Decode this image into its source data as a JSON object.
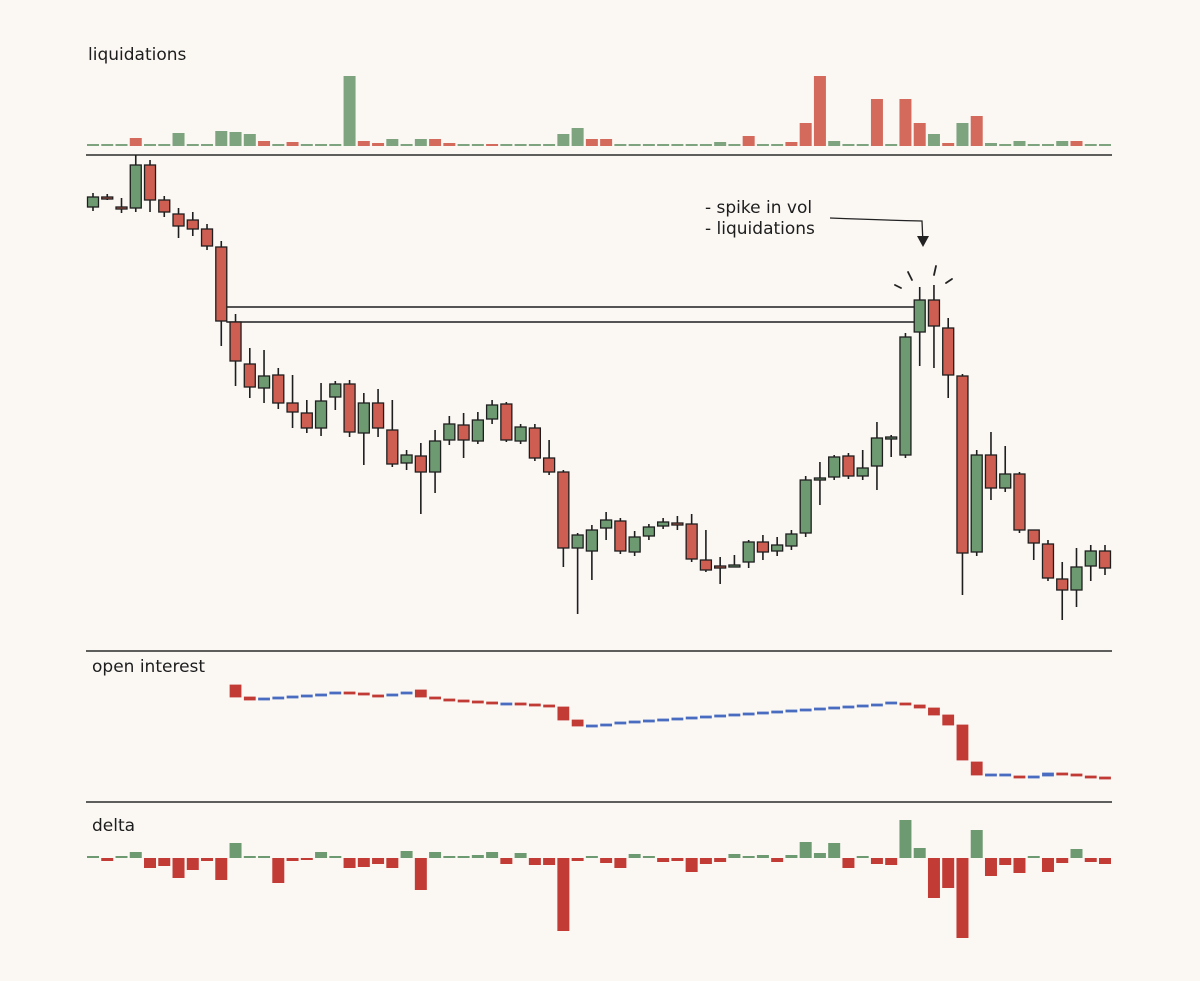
{
  "chart_data": [
    {
      "type": "bar",
      "title": "liquidations",
      "ylim": [
        0,
        72
      ],
      "values": [
        2,
        2,
        2,
        8,
        2,
        2,
        13,
        2,
        2,
        15,
        14,
        12,
        5,
        2,
        4,
        2,
        2,
        2,
        70,
        5,
        3,
        7,
        2,
        7,
        7,
        3,
        2,
        2,
        2,
        2,
        2,
        2,
        2,
        12,
        18,
        7,
        7,
        2,
        2,
        2,
        2,
        2,
        2,
        2,
        4,
        2,
        10,
        2,
        2,
        4,
        23,
        70,
        5,
        2,
        2,
        47,
        2,
        47,
        23,
        12,
        3,
        23,
        30,
        3,
        2,
        5,
        2,
        2,
        5,
        5,
        2,
        2
      ],
      "colors": [
        "#7ea37f",
        "#7ea37f",
        "#7ea37f",
        "#d46a5c",
        "#7ea37f",
        "#7ea37f",
        "#7ea37f",
        "#7ea37f",
        "#7ea37f",
        "#7ea37f",
        "#7ea37f",
        "#7ea37f",
        "#d46a5c",
        "#7ea37f",
        "#d46a5c",
        "#7ea37f",
        "#7ea37f",
        "#7ea37f",
        "#7ea37f",
        "#d46a5c",
        "#d46a5c",
        "#7ea37f",
        "#7ea37f",
        "#7ea37f",
        "#d46a5c",
        "#d46a5c",
        "#7ea37f",
        "#7ea37f",
        "#d46a5c",
        "#7ea37f",
        "#7ea37f",
        "#7ea37f",
        "#7ea37f",
        "#7ea37f",
        "#7ea37f",
        "#d46a5c",
        "#d46a5c",
        "#7ea37f",
        "#7ea37f",
        "#7ea37f",
        "#7ea37f",
        "#7ea37f",
        "#7ea37f",
        "#7ea37f",
        "#7ea37f",
        "#7ea37f",
        "#d46a5c",
        "#7ea37f",
        "#7ea37f",
        "#d46a5c",
        "#d46a5c",
        "#d46a5c",
        "#7ea37f",
        "#7ea37f",
        "#7ea37f",
        "#d46a5c",
        "#7ea37f",
        "#d46a5c",
        "#d46a5c",
        "#7ea37f",
        "#d46a5c",
        "#7ea37f",
        "#d46a5c",
        "#7ea37f",
        "#7ea37f",
        "#7ea37f",
        "#7ea37f",
        "#7ea37f",
        "#7ea37f",
        "#d46a5c",
        "#7ea37f",
        "#7ea37f"
      ]
    },
    {
      "type": "candlestick",
      "ylim": [
        0,
        500
      ],
      "color_up": "#6e9a72",
      "color_down": "#cf5e52",
      "open": [
        443,
        453,
        443,
        442,
        485,
        450,
        436,
        430,
        421,
        403,
        328,
        286,
        262,
        275,
        247,
        237,
        222,
        253,
        266,
        217,
        247,
        220,
        187,
        194,
        178,
        210,
        225,
        209,
        231,
        246,
        209,
        222,
        192,
        178,
        102,
        99,
        122,
        129,
        98,
        114,
        124,
        127,
        126,
        90,
        84,
        84,
        88,
        108,
        99,
        104,
        117,
        171,
        173,
        194,
        174,
        184,
        211,
        195,
        318,
        350,
        322,
        274,
        98,
        195,
        162,
        176,
        120,
        106,
        71,
        60,
        84,
        99
      ],
      "high": [
        457,
        456,
        452,
        495,
        490,
        454,
        442,
        438,
        426,
        409,
        336,
        302,
        300,
        282,
        275,
        250,
        267,
        269,
        270,
        257,
        261,
        250,
        200,
        207,
        220,
        234,
        237,
        238,
        250,
        248,
        226,
        226,
        210,
        180,
        117,
        125,
        138,
        132,
        119,
        126,
        132,
        134,
        136,
        120,
        93,
        95,
        110,
        115,
        113,
        120,
        174,
        188,
        195,
        197,
        200,
        228,
        215,
        317,
        363,
        365,
        332,
        276,
        200,
        218,
        204,
        178,
        120,
        110,
        88,
        102,
        105,
        105
      ],
      "low": [
        439,
        450,
        437,
        438,
        438,
        433,
        412,
        414,
        400,
        304,
        264,
        252,
        247,
        241,
        222,
        217,
        214,
        240,
        213,
        185,
        213,
        183,
        180,
        136,
        157,
        205,
        192,
        206,
        226,
        208,
        206,
        189,
        175,
        83,
        36,
        70,
        110,
        96,
        94,
        110,
        121,
        120,
        88,
        78,
        66,
        83,
        82,
        90,
        94,
        100,
        113,
        145,
        170,
        171,
        170,
        160,
        193,
        192,
        284,
        282,
        252,
        55,
        94,
        150,
        158,
        117,
        90,
        69,
        30,
        43,
        69,
        75
      ],
      "close": [
        453,
        452,
        441,
        485,
        450,
        438,
        424,
        421,
        404,
        329,
        289,
        263,
        274,
        247,
        238,
        222,
        249,
        266,
        218,
        247,
        222,
        186,
        195,
        178,
        209,
        226,
        210,
        230,
        245,
        210,
        223,
        192,
        178,
        102,
        115,
        120,
        130,
        99,
        113,
        123,
        128,
        126,
        91,
        80,
        82,
        85,
        108,
        98,
        105,
        116,
        170,
        172,
        193,
        174,
        182,
        212,
        213,
        313,
        350,
        324,
        275,
        97,
        195,
        162,
        176,
        120,
        107,
        72,
        60,
        83,
        99,
        82
      ],
      "levels": [
        343,
        328
      ],
      "annotations": [
        "- spike in vol",
        "- liquidations"
      ]
    },
    {
      "type": "candlestick",
      "title": "open interest",
      "ylim": [
        15,
        125
      ],
      "color_up": "#4a6cc0",
      "color_down": "#c23b35",
      "open": [
        null,
        null,
        null,
        null,
        null,
        null,
        null,
        null,
        null,
        null,
        115,
        103,
        100,
        102,
        103,
        104,
        105,
        106,
        108,
        107,
        105,
        104,
        106,
        110,
        103,
        101,
        100,
        99,
        98,
        97,
        97,
        96,
        95,
        93,
        80,
        74,
        75,
        76,
        78,
        79,
        80,
        81,
        82,
        83,
        84,
        85,
        86,
        87,
        88,
        89,
        90,
        91,
        92,
        93,
        94,
        95,
        96,
        97,
        95,
        92,
        85,
        75,
        38,
        25,
        25,
        24,
        23,
        24,
        27,
        26,
        24,
        23
      ],
      "close": [
        null,
        null,
        null,
        null,
        null,
        null,
        null,
        null,
        null,
        null,
        103,
        100,
        102,
        103,
        104,
        105,
        106,
        108,
        107,
        105,
        104,
        106,
        108,
        103,
        101,
        100,
        99,
        98,
        97,
        97,
        96,
        95,
        93,
        80,
        74,
        75,
        76,
        78,
        79,
        80,
        81,
        82,
        83,
        84,
        85,
        86,
        87,
        88,
        89,
        90,
        91,
        92,
        93,
        94,
        95,
        96,
        98,
        95,
        92,
        85,
        75,
        40,
        25,
        26,
        26,
        23,
        24,
        27,
        26,
        24,
        23,
        21
      ]
    },
    {
      "type": "bar",
      "title": "delta",
      "ylim": [
        -85,
        45
      ],
      "color_up": "#6e9a72",
      "color_down": "#c23b35",
      "values": [
        1,
        -3,
        1,
        6,
        -10,
        -8,
        -20,
        -12,
        -3,
        -22,
        15,
        2,
        2,
        -25,
        -3,
        -2,
        6,
        1,
        -10,
        -9,
        -6,
        -10,
        7,
        -32,
        6,
        2,
        1,
        3,
        6,
        -6,
        5,
        -7,
        -7,
        -73,
        -3,
        1,
        -5,
        -10,
        4,
        2,
        -4,
        -3,
        -14,
        -6,
        -4,
        4,
        2,
        3,
        -4,
        3,
        16,
        5,
        15,
        -10,
        2,
        -6,
        -7,
        38,
        10,
        -40,
        -30,
        -80,
        28,
        -18,
        -7,
        -15,
        2,
        -14,
        -5,
        9,
        -4,
        -6
      ]
    }
  ]
}
